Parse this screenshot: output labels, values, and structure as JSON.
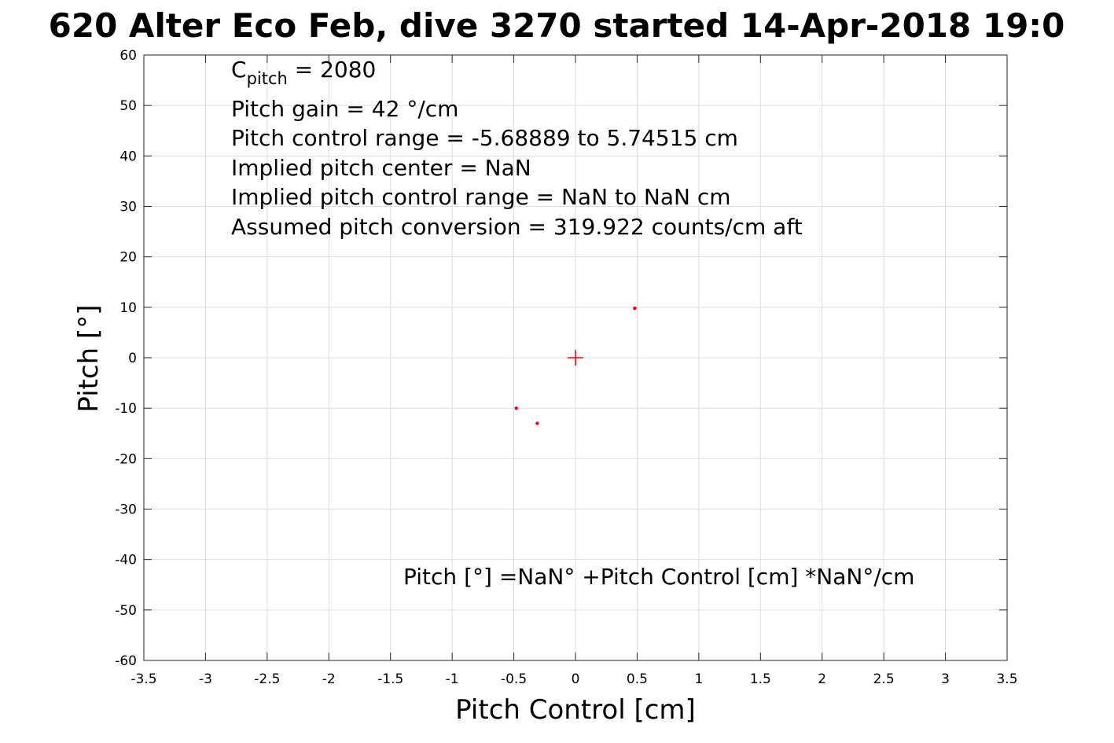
{
  "chart_data": {
    "type": "scatter",
    "title": "620 Alter Eco Feb, dive 3270 started 14-Apr-2018 19:0",
    "xlabel": "Pitch Control [cm]",
    "ylabel": "Pitch [°]",
    "xlim": [
      -3.5,
      3.5
    ],
    "ylim": [
      -60,
      60
    ],
    "x_ticks": [
      -3.5,
      -3,
      -2.5,
      -2,
      -1.5,
      -1,
      -0.5,
      0,
      0.5,
      1,
      1.5,
      2,
      2.5,
      3,
      3.5
    ],
    "x_tick_labels": [
      "-3.5",
      "-3",
      "-2.5",
      "-2",
      "-1.5",
      "-1",
      "-0.5",
      "0",
      "0.5",
      "1",
      "1.5",
      "2",
      "2.5",
      "3",
      "3.5"
    ],
    "y_ticks": [
      -60,
      -50,
      -40,
      -30,
      -20,
      -10,
      0,
      10,
      20,
      30,
      40,
      50,
      60
    ],
    "y_tick_labels": [
      "-60",
      "-50",
      "-40",
      "-30",
      "-20",
      "-10",
      "0",
      "10",
      "20",
      "30",
      "40",
      "50",
      "60"
    ],
    "grid": true,
    "marker_color": "#ff0000",
    "points": [
      {
        "x": 0.48,
        "y": 9.8
      },
      {
        "x": -0.48,
        "y": -10
      },
      {
        "x": -0.31,
        "y": -13
      }
    ],
    "center_marker": {
      "x": 0,
      "y": 0,
      "shape": "plus"
    },
    "annotations": {
      "c_pitch_main": "C",
      "c_pitch_sub": "pitch",
      "c_pitch_value": " = 2080",
      "lines": [
        "Pitch gain = 42 °/cm",
        "Pitch control range = -5.68889 to 5.74515 cm",
        "Implied pitch center = NaN",
        "Implied pitch control range = NaN to NaN cm",
        "Assumed pitch conversion = 319.922 counts/cm aft"
      ],
      "fit_equation": "Pitch [°] =NaN° +Pitch Control [cm] *NaN°/cm"
    }
  }
}
